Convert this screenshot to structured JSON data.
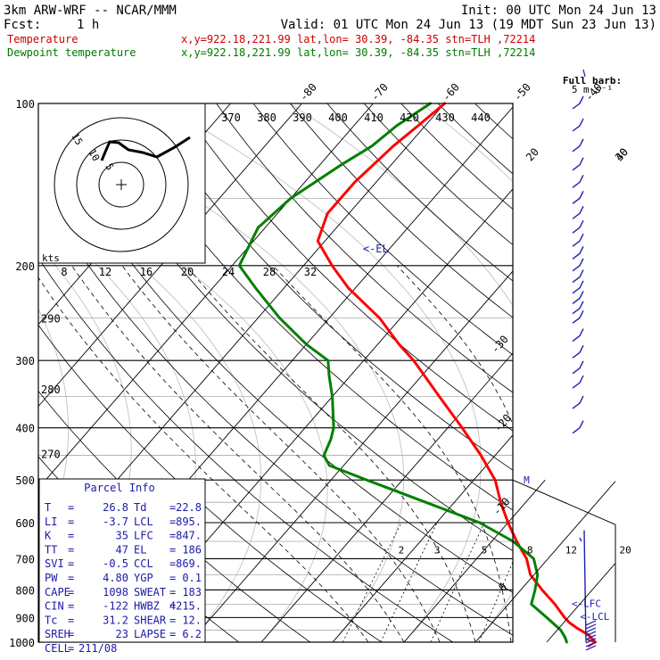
{
  "header": {
    "model": "3km ARW-WRF -- NCAR/MMM",
    "init": "Init: 00 UTC Mon 24 Jun 13",
    "fcst_label": "Fcst:",
    "fcst_value": "1 h",
    "valid": "Valid: 01 UTC Mon 24 Jun 13 (19 MDT Sun 23 Jun 13)",
    "temp_legend": "Temperature",
    "temp_info": "x,y=922.18,221.99   lat,lon= 30.39, -84.35  stn=TLH ,72214",
    "dew_legend": "Dewpoint temperature",
    "dew_info": "x,y=922.18,221.99   lat,lon= 30.39, -84.35  stn=TLH ,72214",
    "barb_label_1": "Full barb:",
    "barb_label_2": "5 m s⁻¹"
  },
  "colors": {
    "temperature": "#ff0000",
    "dewpoint": "#008000",
    "legend_temperature": "#cc0000",
    "legend_dewpoint": "#007a00",
    "wind": "#2020b0",
    "grid": "#000000",
    "parcel_title": "#1a1aa8"
  },
  "chart_data": {
    "type": "line",
    "y_scale": "log",
    "ylim": [
      1000,
      100
    ],
    "xlim": [
      -40,
      40
    ],
    "pressure_ticks": [
      100,
      200,
      300,
      400,
      500,
      600,
      700,
      800,
      900,
      1000
    ],
    "isotherm_labels_top": [
      -80,
      -70,
      -60,
      -50,
      -40
    ],
    "isotherm_labels_right": [
      -30,
      -20,
      -10,
      0,
      10,
      20,
      30,
      40
    ],
    "theta_labels": [
      "370",
      "380",
      "390",
      "400",
      "410",
      "420",
      "430",
      "440"
    ],
    "theta_side_labels": [
      "290",
      "280",
      "270"
    ],
    "mixing_ratio_labels": [
      "2",
      "3",
      "5",
      "8",
      "12",
      "20"
    ],
    "annotations": {
      "el": "<-EL",
      "lfc": "<-LFC",
      "lcl": "<-LCL",
      "m": "M"
    },
    "series": [
      {
        "name": "Temperature",
        "points": [
          [
            1000,
            26.8
          ],
          [
            970,
            25
          ],
          [
            940,
            22.4
          ],
          [
            920,
            20.8
          ],
          [
            900,
            19.5
          ],
          [
            850,
            16.5
          ],
          [
            800,
            13
          ],
          [
            750,
            9.5
          ],
          [
            700,
            7
          ],
          [
            650,
            3.5
          ],
          [
            600,
            0
          ],
          [
            550,
            -3.5
          ],
          [
            500,
            -7
          ],
          [
            450,
            -12
          ],
          [
            400,
            -18
          ],
          [
            350,
            -25
          ],
          [
            300,
            -33
          ],
          [
            280,
            -37
          ],
          [
            250,
            -43
          ],
          [
            220,
            -51
          ],
          [
            200,
            -56
          ],
          [
            180,
            -61
          ],
          [
            160,
            -63
          ],
          [
            140,
            -63
          ],
          [
            120,
            -62
          ],
          [
            110,
            -61
          ],
          [
            100,
            -60
          ]
        ]
      },
      {
        "name": "Dewpoint temperature",
        "points": [
          [
            1000,
            22.8
          ],
          [
            980,
            22
          ],
          [
            950,
            20.5
          ],
          [
            900,
            17
          ],
          [
            850,
            13.2
          ],
          [
            800,
            12
          ],
          [
            750,
            10.5
          ],
          [
            700,
            8
          ],
          [
            650,
            3
          ],
          [
            600,
            -4
          ],
          [
            550,
            -14
          ],
          [
            500,
            -25
          ],
          [
            470,
            -32
          ],
          [
            450,
            -34
          ],
          [
            420,
            -35
          ],
          [
            400,
            -36
          ],
          [
            350,
            -40
          ],
          [
            320,
            -43
          ],
          [
            300,
            -45
          ],
          [
            280,
            -50
          ],
          [
            250,
            -57
          ],
          [
            220,
            -64
          ],
          [
            200,
            -69
          ],
          [
            170,
            -71
          ],
          [
            150,
            -70
          ],
          [
            130,
            -67
          ],
          [
            120,
            -65
          ],
          [
            110,
            -64
          ],
          [
            100,
            -62
          ]
        ]
      }
    ],
    "hodograph": {
      "ring_labels": [
        "15",
        "10",
        "5"
      ],
      "speed_label": "kts",
      "speed_ticks": [
        "8",
        "12",
        "16",
        "20",
        "24",
        "28",
        "32"
      ]
    },
    "wind_barb_pressures": [
      100,
      110,
      120,
      130,
      140,
      150,
      160,
      170,
      180,
      190,
      200,
      210,
      220,
      230,
      240,
      250,
      270,
      290,
      310,
      330,
      360,
      400
    ]
  },
  "parcel_info": {
    "title": "Parcel Info",
    "rows": [
      [
        "T",
        "26.8",
        "Td",
        "22.8"
      ],
      [
        "LI",
        "-3.7",
        "LCL",
        "895."
      ],
      [
        "K",
        "35",
        "LFC",
        "847."
      ],
      [
        "TT",
        "47",
        "EL",
        "186"
      ],
      [
        "SVI",
        "-0.5",
        "CCL",
        "869."
      ],
      [
        "PW",
        "4.80",
        "YGP",
        "0.1"
      ],
      [
        "CAPE",
        "1098",
        "SWEAT",
        "183"
      ],
      [
        "CIN",
        "-122",
        "HWBZ",
        "4215."
      ],
      [
        "Tc",
        "31.2",
        "SHEAR",
        "12."
      ],
      [
        "SREH",
        "23",
        "LAPSE",
        "6.2"
      ]
    ],
    "cell_label": "CELL",
    "cell_value": "211/08"
  }
}
